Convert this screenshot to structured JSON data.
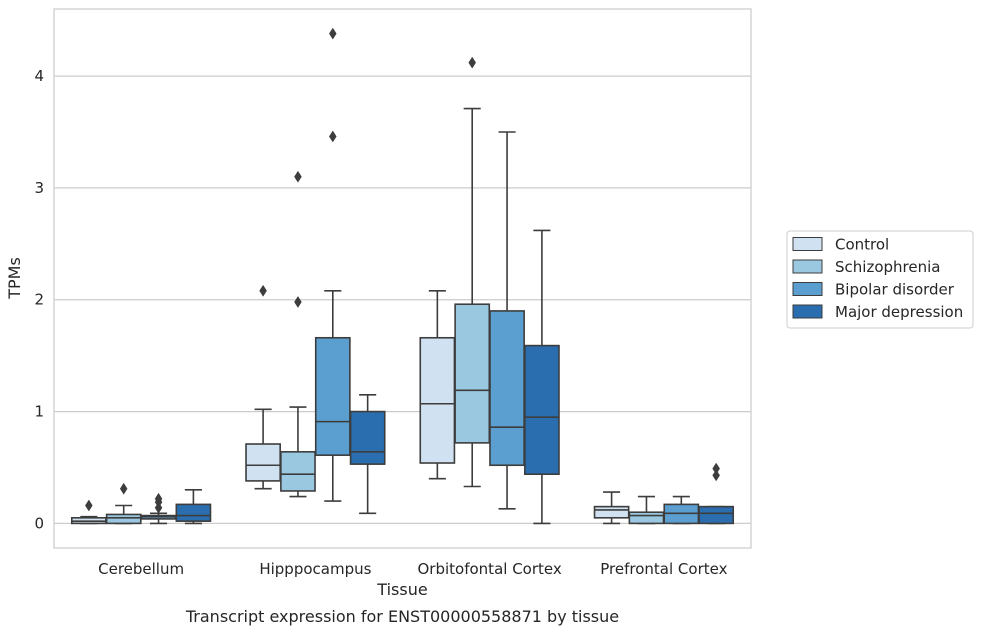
{
  "chart_data": {
    "type": "box",
    "xlabel": "Tissue",
    "ylabel": "TPMs",
    "caption": "Transcript expression for ENST00000558871 by tissue",
    "ylim": [
      -0.22,
      4.6
    ],
    "yticks": [
      "0",
      "1",
      "2",
      "3",
      "4"
    ],
    "grid": "horizontal",
    "legend_position": "right",
    "categories": [
      "Cerebellum",
      "Hipppocampus",
      "Orbitofontal Cortex",
      "Prefrontal Cortex"
    ],
    "series": [
      {
        "name": "Control",
        "color": "#d0e1f2",
        "boxes": [
          {
            "whislo": 0.0,
            "q1": 0.0,
            "med": 0.02,
            "q3": 0.05,
            "whishi": 0.06,
            "fliers": [
              0.16
            ]
          },
          {
            "whislo": 0.31,
            "q1": 0.38,
            "med": 0.52,
            "q3": 0.71,
            "whishi": 1.02,
            "fliers": [
              2.08
            ]
          },
          {
            "whislo": 0.4,
            "q1": 0.54,
            "med": 1.07,
            "q3": 1.66,
            "whishi": 2.08,
            "fliers": []
          },
          {
            "whislo": 0.0,
            "q1": 0.05,
            "med": 0.12,
            "q3": 0.15,
            "whishi": 0.28,
            "fliers": []
          }
        ]
      },
      {
        "name": "Schizophrenia",
        "color": "#9ac8e0",
        "boxes": [
          {
            "whislo": 0.0,
            "q1": 0.0,
            "med": 0.05,
            "q3": 0.08,
            "whishi": 0.16,
            "fliers": [
              0.31
            ]
          },
          {
            "whislo": 0.24,
            "q1": 0.29,
            "med": 0.44,
            "q3": 0.64,
            "whishi": 1.04,
            "fliers": [
              1.98,
              3.1
            ]
          },
          {
            "whislo": 0.33,
            "q1": 0.72,
            "med": 1.19,
            "q3": 1.96,
            "whishi": 3.71,
            "fliers": [
              4.12
            ]
          },
          {
            "whislo": 0.0,
            "q1": 0.0,
            "med": 0.07,
            "q3": 0.1,
            "whishi": 0.24,
            "fliers": []
          }
        ]
      },
      {
        "name": "Bipolar disorder",
        "color": "#5a9fcf",
        "boxes": [
          {
            "whislo": 0.0,
            "q1": 0.04,
            "med": 0.06,
            "q3": 0.07,
            "whishi": 0.09,
            "fliers": [
              0.14,
              0.19,
              0.22
            ]
          },
          {
            "whislo": 0.2,
            "q1": 0.61,
            "med": 0.91,
            "q3": 1.66,
            "whishi": 2.08,
            "fliers": [
              3.46,
              4.38
            ]
          },
          {
            "whislo": 0.13,
            "q1": 0.52,
            "med": 0.86,
            "q3": 1.9,
            "whishi": 3.5,
            "fliers": []
          },
          {
            "whislo": 0.0,
            "q1": 0.0,
            "med": 0.09,
            "q3": 0.17,
            "whishi": 0.24,
            "fliers": []
          }
        ]
      },
      {
        "name": "Major depression",
        "color": "#2a6eb0",
        "boxes": [
          {
            "whislo": 0.0,
            "q1": 0.02,
            "med": 0.07,
            "q3": 0.17,
            "whishi": 0.3,
            "fliers": []
          },
          {
            "whislo": 0.09,
            "q1": 0.53,
            "med": 0.64,
            "q3": 1.0,
            "whishi": 1.15,
            "fliers": []
          },
          {
            "whislo": 0.0,
            "q1": 0.44,
            "med": 0.95,
            "q3": 1.59,
            "whishi": 2.62,
            "fliers": []
          },
          {
            "whislo": 0.0,
            "q1": 0.0,
            "med": 0.09,
            "q3": 0.15,
            "whishi": 0.15,
            "fliers": [
              0.43,
              0.49
            ]
          }
        ]
      }
    ]
  }
}
